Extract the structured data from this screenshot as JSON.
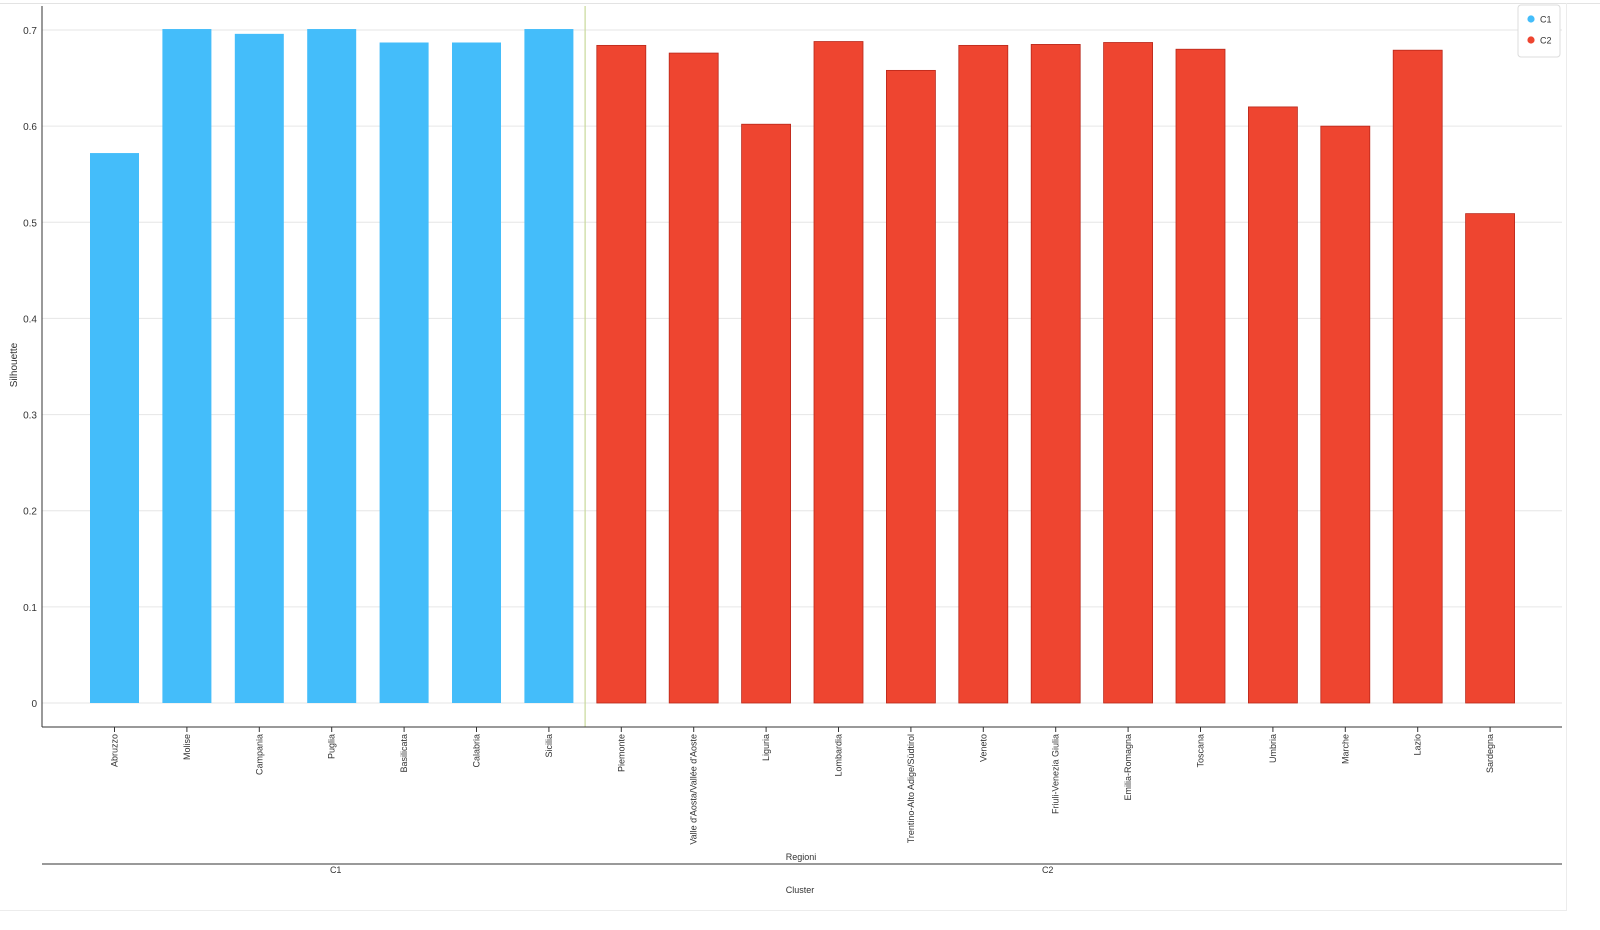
{
  "chart_data": {
    "type": "bar",
    "ylabel": "Silhouette",
    "xlabel": "Regioni",
    "group_axis_label": "Cluster",
    "ylim": [
      0,
      0.7
    ],
    "yticks": [
      "0",
      "0.1",
      "0.2",
      "0.3",
      "0.4",
      "0.5",
      "0.6",
      "0.7"
    ],
    "grid": true,
    "legend_position": "top-right",
    "categories": [
      "Abruzzo",
      "Molise",
      "Campania",
      "Puglia",
      "Basilicata",
      "Calabria",
      "Sicilia",
      "Piemonte",
      "Valle d'Aosta/Vallée d'Aoste",
      "Liguria",
      "Lombardia",
      "Trentino-Alto Adige/Südtirol",
      "Veneto",
      "Friuli-Venezia Giulia",
      "Emilia-Romagna",
      "Toscana",
      "Umbria",
      "Marche",
      "Lazio",
      "Sardegna"
    ],
    "values": [
      0.572,
      0.701,
      0.696,
      0.701,
      0.687,
      0.687,
      0.701,
      0.684,
      0.676,
      0.602,
      0.688,
      0.658,
      0.684,
      0.685,
      0.687,
      0.68,
      0.62,
      0.6,
      0.679,
      0.509
    ],
    "clusters": [
      "C1",
      "C1",
      "C1",
      "C1",
      "C1",
      "C1",
      "C1",
      "C2",
      "C2",
      "C2",
      "C2",
      "C2",
      "C2",
      "C2",
      "C2",
      "C2",
      "C2",
      "C2",
      "C2",
      "C2"
    ],
    "groups": [
      {
        "name": "C1",
        "color": "#44bdfa"
      },
      {
        "name": "C2",
        "color": "#ee4530"
      }
    ],
    "colors": {
      "C1": "#44bdfa",
      "C2": "#ee4530",
      "C2_edge": "#b8271a",
      "separator": "#c8d89a",
      "grid": "#e6e6e6"
    }
  }
}
